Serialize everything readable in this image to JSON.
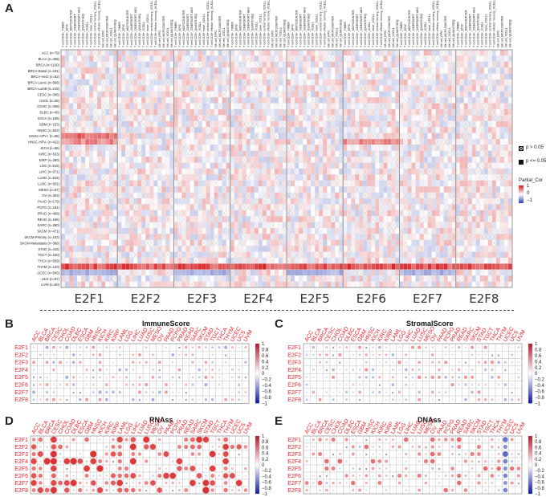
{
  "panelA": {
    "letter": "A",
    "genes": [
      "E2F1",
      "E2F2",
      "E2F3",
      "E2F4",
      "E2F5",
      "E2F6",
      "E2F7",
      "E2F8"
    ],
    "cancers": [
      "ACC (n=79)",
      "BLCA (n=408)",
      "BRCA (n=1100)",
      "BRCA-Basal (n=191)",
      "BRCA-Her2 (n=82)",
      "BRCA-LumA (n=568)",
      "BRCA-LumB (n=219)",
      "CESC (n=306)",
      "CHOL (n=36)",
      "COAD (n=458)",
      "DLBC (n=48)",
      "ESCA (n=185)",
      "GBM (n=153)",
      "HNSC (n=522)",
      "HNSC-HPV+ (n=98)",
      "HNSC-HPV- (n=422)",
      "KICH (n=66)",
      "KIRC (n=533)",
      "KIRP (n=290)",
      "LGG (n=516)",
      "LIHC (n=371)",
      "LUAD (n=515)",
      "LUSC (n=501)",
      "MESO (n=87)",
      "OV (n=303)",
      "PAAD (n=179)",
      "PCPG (n=181)",
      "PRAD (n=498)",
      "READ (n=166)",
      "SARC (n=260)",
      "SKCM (n=471)",
      "SKCM-Primary (n=103)",
      "SKCM-Metastasis (n=368)",
      "STAD (n=415)",
      "TGCT (n=150)",
      "THCA (n=509)",
      "THYM (n=120)",
      "UCEC (n=545)",
      "UCS (n=57)",
      "UVM (n=80)"
    ],
    "cell_labels": [
      "T cell CD8+_TIMER",
      "T cell CD8+_EPIC",
      "T cell CD8+_MCPCOUNTER",
      "T cell CD8+_CIBERSORT",
      "T cell CD8+_CIBERSORT-ABS",
      "T cell CD8+_QUANTISEQ",
      "T cell CD8+_XCELL",
      "T cell CD8+ naive_XCELL",
      "T cell CD8+ central memory_XCELL",
      "T cell CD8+ effector memory_XCELL",
      "NK cell_EPIC",
      "NK cell_MCPCOUNTER",
      "NK cell_XCELL",
      "NK cell_QUANTISEQ"
    ],
    "legend": {
      "cross_label": "p > 0.05",
      "solid_label": "p <= 0.05",
      "title": "Partial_Cor",
      "ticks": [
        "1",
        "0",
        "−1"
      ]
    }
  },
  "panelB": {
    "letter": "B",
    "title": "ImmuneScore",
    "cols": [
      "ACC",
      "BLCA",
      "BRCA",
      "CESC",
      "CHOL",
      "COAD",
      "DLBC",
      "ESCA",
      "GBM",
      "HNSC",
      "KICH",
      "KIRC",
      "KIRP",
      "LAML",
      "LGG",
      "LIHC",
      "LUAD",
      "LUSC",
      "MESO",
      "OV",
      "PAAD",
      "PCPG",
      "PRAD",
      "READ",
      "SARC",
      "SKCM",
      "STAD",
      "TGCT",
      "THCA",
      "THYM",
      "UCEC",
      "UCS",
      "UVM"
    ],
    "rows": [
      "E2F1",
      "E2F2",
      "E2F3",
      "E2F4",
      "E2F5",
      "E2F6",
      "E2F7",
      "E2F8"
    ],
    "ticks": [
      "1",
      "0.8",
      "0.6",
      "0.4",
      "0.2",
      "0",
      "−0.2",
      "−0.4",
      "−0.6",
      "−0.8",
      "−1"
    ]
  },
  "panelC": {
    "letter": "C",
    "title": "StromalScore",
    "cols": [
      "ACC",
      "BLCA",
      "BRCA",
      "CESC",
      "CHOL",
      "COAD",
      "DLBC",
      "ESCA",
      "GBM",
      "HNSC",
      "KICH",
      "KIRC",
      "KIRP",
      "LAML",
      "LGG",
      "LIHC",
      "LUAD",
      "LUSC",
      "MESO",
      "OV",
      "PAAD",
      "PCPG",
      "PRAD",
      "READ",
      "SARC",
      "SKCM",
      "STAD",
      "TGCT",
      "THCA",
      "THYM",
      "UCEC",
      "UCS",
      "UVM"
    ],
    "rows": [
      "E2F1",
      "E2F2",
      "E2F3",
      "E2F4",
      "E2F5",
      "E2F6",
      "E2F7",
      "E2F8"
    ],
    "ticks": [
      "1",
      "0.8",
      "0.6",
      "0.4",
      "0.2",
      "0",
      "−0.2",
      "−0.4",
      "−0.6",
      "−0.8",
      "−1"
    ]
  },
  "panelD": {
    "letter": "D",
    "title": "RNAss",
    "cols": [
      "ACC",
      "BLCA",
      "BRCA",
      "CESC",
      "CHOL",
      "COAD",
      "DLBC",
      "ESCA",
      "GBM",
      "HNSC",
      "KICH",
      "KIRC",
      "KIRP",
      "LAML",
      "LGG",
      "LIHC",
      "LUAD",
      "LUSC",
      "MESO",
      "OV",
      "PAAD",
      "PCPG",
      "PRAD",
      "READ",
      "SARC",
      "SKCM",
      "STAD",
      "TGCT",
      "THCA",
      "THYM",
      "UCEC",
      "UCS",
      "UVM"
    ],
    "rows": [
      "E2F1",
      "E2F2",
      "E2F3",
      "E2F4",
      "E2F5",
      "E2F6",
      "E2F7",
      "E2F8"
    ],
    "ticks": [
      "1",
      "0.8",
      "0.6",
      "0.4",
      "0.2",
      "0",
      "−0.2",
      "−0.4",
      "−0.6",
      "−0.8",
      "−1"
    ]
  },
  "panelE": {
    "letter": "E",
    "title": "DNAss",
    "cols": [
      "ACC",
      "BLCA",
      "BRCA",
      "CESC",
      "CHOL",
      "COAD",
      "DLBC",
      "ESCA",
      "GBM",
      "HNSC",
      "KICH",
      "KIRC",
      "KIRP",
      "LAML",
      "LGG",
      "LIHC",
      "LUAD",
      "LUSC",
      "MESO",
      "OV",
      "PAAD",
      "PCPG",
      "PRAD",
      "READ",
      "SARC",
      "SKCM",
      "STAD",
      "TGCT",
      "THCA",
      "THYM",
      "UCEC",
      "UCS",
      "UVM"
    ],
    "rows": [
      "E2F1",
      "E2F2",
      "E2F3",
      "E2F4",
      "E2F5",
      "E2F6",
      "E2F7",
      "E2F8"
    ],
    "ticks": [
      "1",
      "0.8",
      "0.6",
      "0.4",
      "0.2",
      "0",
      "−0.2",
      "−0.4",
      "−0.6",
      "−0.8",
      "−1"
    ]
  },
  "colors": {
    "pos": "#d7191c",
    "neg": "#2c3fb5",
    "grid": "#bbbbbb",
    "label_red": "#e8202a"
  }
}
